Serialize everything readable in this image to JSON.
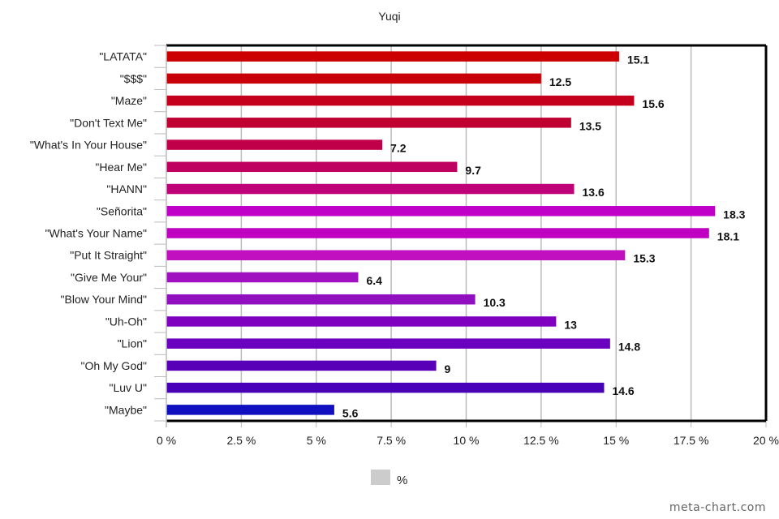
{
  "chart_data": {
    "type": "bar",
    "orientation": "horizontal",
    "title": "Yuqi",
    "xlabel": "",
    "ylabel": "",
    "xlim": [
      0,
      20
    ],
    "grid": true,
    "legend_position": "bottom",
    "legend": [
      {
        "label": "%",
        "color": "#cccccc"
      }
    ],
    "x_ticks": [
      "0 %",
      "2.5 %",
      "5 %",
      "7.5 %",
      "10 %",
      "12.5 %",
      "15 %",
      "17.5 %",
      "20 %"
    ],
    "x_tick_values": [
      0,
      2.5,
      5,
      7.5,
      10,
      12.5,
      15,
      17.5,
      20
    ],
    "categories": [
      "\"LATATA\"",
      "\"$$$\"",
      "\"Maze\"",
      "\"Don't Text Me\"",
      "\"What's In Your House\"",
      "\"Hear Me\"",
      "\"HANN\"",
      "\"Señorita\"",
      "\"What's Your Name\"",
      "\"Put It Straight\"",
      "\"Give Me Your\"",
      "\"Blow Your Mind\"",
      "\"Uh-Oh\"",
      "\"Lion\"",
      "\"Oh My God\"",
      "\"Luv U\"",
      "\"Maybe\""
    ],
    "values": [
      15.1,
      12.5,
      15.6,
      13.5,
      7.2,
      9.7,
      13.6,
      18.3,
      18.1,
      15.3,
      6.4,
      10.3,
      13,
      14.8,
      9,
      14.6,
      5.6
    ],
    "data_labels": [
      "15.1",
      "12.5",
      "15.6",
      "13.5",
      "7.2",
      "9.7",
      "13.6",
      "18.3",
      "18.1",
      "15.3",
      "6.4",
      "10.3",
      "13",
      "14.8",
      "9",
      "14.6",
      "5.6"
    ],
    "colors": [
      "#cc0000",
      "#c80008",
      "#c4001c",
      "#c00030",
      "#c00048",
      "#c00060",
      "#c00078",
      "#c000c8",
      "#c000c0",
      "#c010c0",
      "#a010c0",
      "#9010c0",
      "#8000c0",
      "#6a00c0",
      "#5800b8",
      "#4800b8",
      "#1010c0"
    ]
  },
  "watermark": "meta-chart.com"
}
